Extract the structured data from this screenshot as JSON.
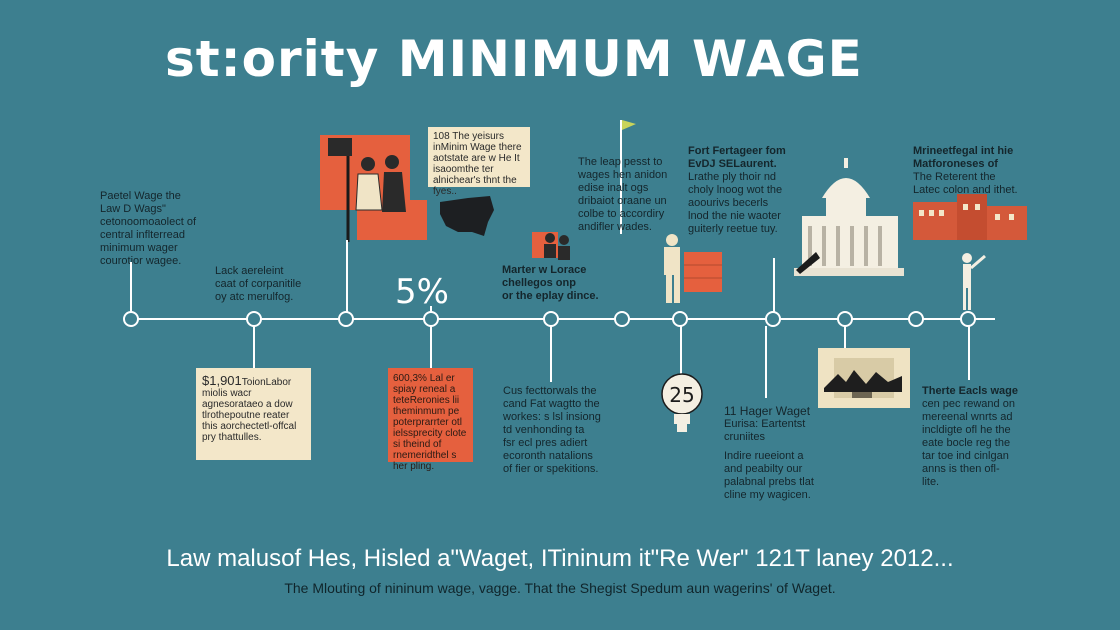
{
  "header": {
    "title": "st:ority MINIMUM WAGE"
  },
  "upper": {
    "t1": [
      "Paetel Wage the",
      "Law D Wags\"",
      "cetonoomoaolect of",
      "central inflterread",
      "minimum wager",
      "courotior wagee."
    ],
    "t2": [
      "Lack aereleint",
      "caat of corpanitile",
      "oy atc merulfog."
    ],
    "t3": [
      "108 The yeisurs in",
      "Minim Wage there aot",
      "state are w He It is",
      "aoomthe ter alniche",
      "ar's thnt the fyes.."
    ],
    "t4": [
      "Marter w Lorace",
      "chellegos onp",
      "or the eplay dince."
    ],
    "t5": [
      "The leap pesst to",
      "wages hen anidon",
      "edise inalt ogs",
      "dribaiot oraane un",
      "colbe to accordiry",
      "andifler wades."
    ],
    "t6": [
      "Fort Fertageer fom",
      "EvDJ SELaurent.",
      "Lrathe ply thoir nd",
      "choly lnoog wot the",
      "aoourivs becerls",
      "lnod the nie waoter",
      "guiterly reetue tuy."
    ],
    "t7": [
      "Mrineetfegal int hie",
      "Matforoneses of",
      "The Reterent the",
      "Latec colon and ithet."
    ]
  },
  "percent": "5%",
  "lower": {
    "b1": [
      "$1,901",
      "Toion",
      "",
      "Labor miolis wacr agnes",
      "orataeo a dow tlrothe",
      "poutne reater this aor",
      "chectetl-offcal pry that",
      "tulles."
    ],
    "b2": [
      "600,3% Lal er s",
      "piay reneal a tete",
      "Reronies lii the",
      "minmum pe poter",
      "prarrter otl ielss",
      "precity clote si the",
      "ind of rnemerid",
      "thel s her pling."
    ],
    "t8": [
      "Cus fecttorwals the",
      "cand Fat wagtto the",
      "workes: s lsl insiong",
      "td venhonding ta",
      "fsr ecl pres adiert",
      "ecoronth natalions",
      "of fier or spekitions."
    ],
    "clock": "25",
    "t9": [
      "11 Hager Waget",
      "Eurisa: Eartentst",
      "cruniites",
      "",
      "Indire rueeiont a",
      "and peabilty our",
      "palabnal prebs tlat",
      "cline my wagicen."
    ],
    "t10": [
      "Therte Eacls wage",
      "cen pec rewand on",
      "mereenal wnrts ad",
      "incldigte ofl he the",
      "eate bocle reg the",
      "tar toe ind cinlgan",
      "anns is then ofl-",
      "lite."
    ]
  },
  "footer": {
    "main": "Law malusof Hes, Hisled a\"Waget, ITininum it\"Re Wer\" 121T laney 2012...",
    "sub": "The Mlouting of nininum wage, vagge. That the Shegist Spedum aun wagerins' of Waget."
  },
  "colors": {
    "background": "#3d7f8f",
    "accent": "#e5603e",
    "paper": "#f3e7c9",
    "line": "#ffffff"
  }
}
